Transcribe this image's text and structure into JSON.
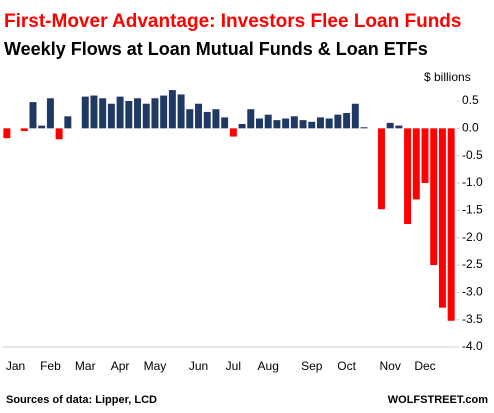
{
  "chart_data": {
    "type": "bar",
    "title": "First-Mover Advantage: Investors Flee Loan Funds",
    "subtitle": "Weekly Flows at Loan Mutual Funds & Loan ETFs",
    "y_label": "$ billions",
    "source": "Sources of data: Lipper, LCD",
    "credit": "WOLFSTREET.com",
    "color": "#1f3864",
    "negative_color": "#ff0000",
    "categories": [
      null,
      "Jan",
      null,
      null,
      null,
      "Feb",
      null,
      null,
      null,
      "Mar",
      null,
      null,
      null,
      "Apr",
      null,
      null,
      null,
      "May",
      null,
      null,
      null,
      null,
      "Jun",
      null,
      null,
      null,
      "Jul",
      null,
      null,
      null,
      "Aug",
      null,
      null,
      null,
      null,
      "Sep",
      null,
      null,
      null,
      "Oct",
      null,
      null,
      null,
      null,
      "Nov",
      null,
      null,
      null,
      "Dec",
      null,
      null,
      null
    ],
    "values": [
      -0.18,
      0,
      -0.05,
      0.48,
      0.05,
      0.55,
      -0.2,
      0.22,
      0,
      0.58,
      0.6,
      0.55,
      0.45,
      0.58,
      0.5,
      0.55,
      0.45,
      0.55,
      0.6,
      0.7,
      0.62,
      0.35,
      0.45,
      0.3,
      0.35,
      0.2,
      -0.15,
      0.08,
      0.35,
      0.18,
      0.25,
      0.15,
      0.18,
      0.22,
      0.15,
      0.12,
      0.2,
      0.18,
      0.25,
      0.28,
      0.45,
      0.02,
      0,
      -1.48,
      0.1,
      0.05,
      -1.75,
      -1.3,
      -1.0,
      -2.5,
      -3.28,
      -3.52
    ],
    "ylim": [
      -4,
      0.5
    ],
    "yticks": [
      0.5,
      {
        "value": 0,
        "label": "0.0"
      },
      -0.5,
      {
        "value": -1,
        "label": "-1.0"
      },
      -1.5,
      {
        "value": -2,
        "label": "-2.0"
      },
      -2.5,
      {
        "value": -3,
        "label": "-3.0"
      },
      -3.5,
      {
        "value": -4,
        "label": "-4.0"
      }
    ]
  }
}
